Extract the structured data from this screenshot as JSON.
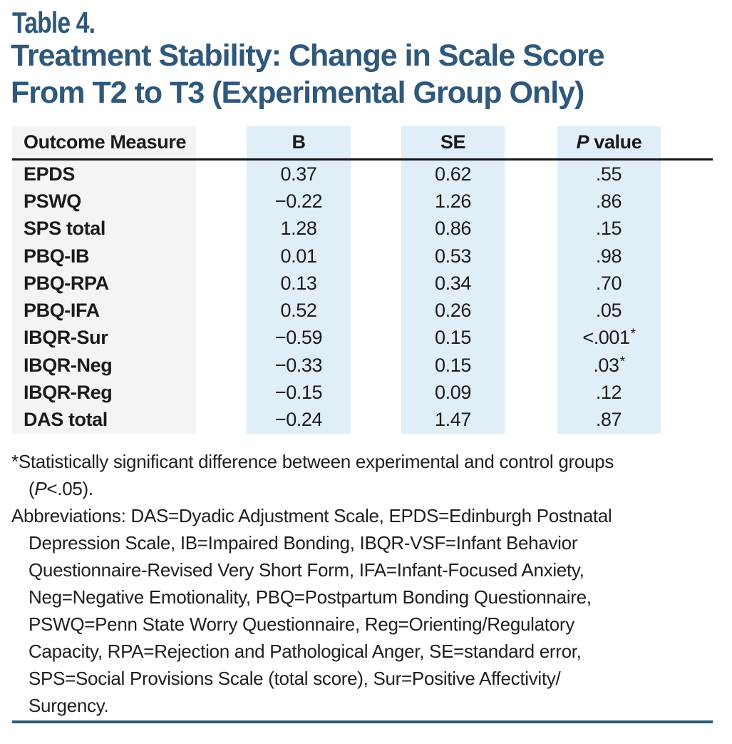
{
  "header": {
    "table_label": "Table 4.",
    "title_line1": "Treatment Stability: Change in Scale Score",
    "title_line2": "From T2 to T3 (Experimental Group Only)"
  },
  "columns": {
    "outcome": "Outcome Measure",
    "b": "B",
    "se": "SE",
    "p_italic": "P",
    "p_value": "value"
  },
  "rows": [
    {
      "label": "EPDS",
      "b": "0.37",
      "se": "0.62",
      "p": ".55",
      "star": ""
    },
    {
      "label": "PSWQ",
      "b": "−0.22",
      "se": "1.26",
      "p": ".86",
      "star": ""
    },
    {
      "label": "SPS total",
      "b": "1.28",
      "se": "0.86",
      "p": ".15",
      "star": ""
    },
    {
      "label": "PBQ-IB",
      "b": "0.01",
      "se": "0.53",
      "p": ".98",
      "star": ""
    },
    {
      "label": "PBQ-RPA",
      "b": "0.13",
      "se": "0.34",
      "p": ".70",
      "star": ""
    },
    {
      "label": "PBQ-IFA",
      "b": "0.52",
      "se": "0.26",
      "p": ".05",
      "star": ""
    },
    {
      "label": "IBQR-Sur",
      "b": "−0.59",
      "se": "0.15",
      "p": "<.001",
      "star": "*"
    },
    {
      "label": "IBQR-Neg",
      "b": "−0.33",
      "se": "0.15",
      "p": ".03",
      "star": "*"
    },
    {
      "label": "IBQR-Reg",
      "b": "−0.15",
      "se": "0.09",
      "p": ".12",
      "star": ""
    },
    {
      "label": "DAS total",
      "b": "−0.24",
      "se": "1.47",
      "p": ".87",
      "star": ""
    }
  ],
  "footnotes": {
    "significance_line1": "*Statistically significant difference between experimental and control groups",
    "significance_line2_prefix": "(",
    "significance_line2_p": "P",
    "significance_line2_rest": "<.05).",
    "abbreviation_lines": [
      "Abbreviations: DAS=Dyadic Adjustment Scale, EPDS=Edinburgh Postnatal",
      "Depression Scale, IB=Impaired Bonding, IBQR-VSF=Infant Behavior",
      "Questionnaire-Revised Very Short Form, IFA=Infant-Focused Anxiety,",
      "Neg=Negative Emotionality, PBQ=Postpartum Bonding Questionnaire,",
      "PSWQ=Penn State Worry Questionnaire, Reg=Orienting/Regulatory",
      "Capacity, RPA=Rejection and Pathological Anger, SE=standard error,",
      "SPS=Social Provisions Scale (total score), Sur=Positive Affectivity/",
      "Surgency."
    ]
  },
  "colors": {
    "accent_blue": "#2F587A",
    "column_band_blue": "#E0EEF8",
    "column_band_gray": "#F4F4F5",
    "header_rule_black": "#151515"
  }
}
